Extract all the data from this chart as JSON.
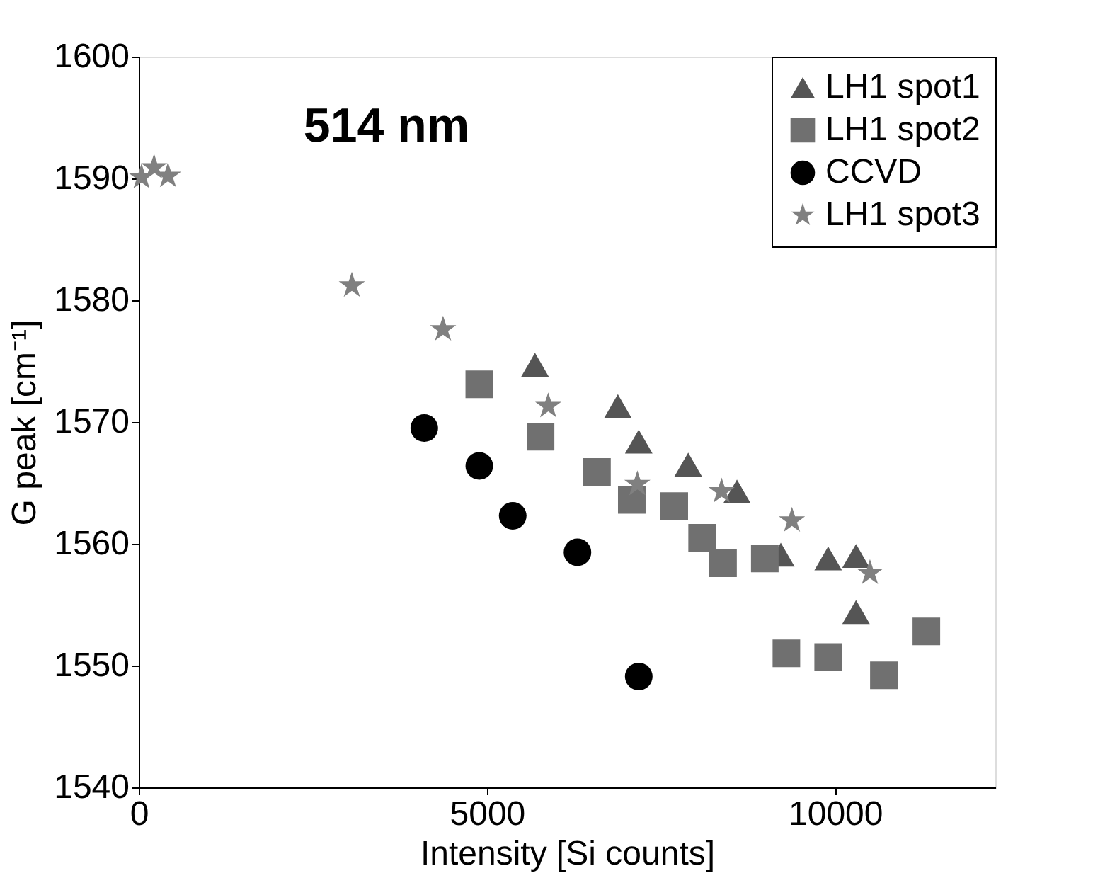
{
  "chart_data": {
    "type": "scatter",
    "annotations": [
      "514 nm"
    ],
    "xlabel": "Intensity [Si counts]",
    "ylabel": "G peak [cm⁻¹]",
    "xlim": [
      0,
      12300
    ],
    "ylim": [
      1540,
      1600
    ],
    "xticks": [
      0,
      5000,
      10000
    ],
    "yticks": [
      1540,
      1550,
      1560,
      1570,
      1580,
      1590,
      1600
    ],
    "grid": false,
    "legend": "top right",
    "series": [
      {
        "name": "LH1 spot1",
        "color": "#555555",
        "marker": "triangle",
        "x": [
          5690,
          6880,
          7180,
          7890,
          8590,
          9220,
          9900,
          10300,
          10300
        ],
        "values": [
          1574.7,
          1571.3,
          1568.4,
          1566.5,
          1564.3,
          1559.1,
          1558.8,
          1559.0,
          1554.4
        ]
      },
      {
        "name": "LH1 spot2",
        "color": "#707070",
        "marker": "square",
        "x": [
          4890,
          5770,
          6580,
          7080,
          7690,
          8090,
          8390,
          8990,
          9300,
          9900,
          10700,
          11310
        ],
        "values": [
          1573.1,
          1568.8,
          1565.9,
          1563.6,
          1563.1,
          1560.5,
          1558.4,
          1558.8,
          1551.0,
          1550.7,
          1549.2,
          1552.8
        ]
      },
      {
        "name": "CCVD",
        "color": "#000000",
        "marker": "circle",
        "x": [
          4100,
          4890,
          5370,
          6300,
          7180
        ],
        "values": [
          1569.5,
          1566.4,
          1562.3,
          1559.3,
          1549.1
        ]
      },
      {
        "name": "LH1 spot3",
        "color": "#808080",
        "marker": "star",
        "x": [
          40,
          220,
          420,
          3060,
          4370,
          5880,
          7160,
          8370,
          9380,
          10500
        ],
        "values": [
          1590.1,
          1590.9,
          1590.2,
          1581.2,
          1577.6,
          1571.3,
          1564.9,
          1564.3,
          1561.9,
          1557.6
        ]
      }
    ]
  }
}
